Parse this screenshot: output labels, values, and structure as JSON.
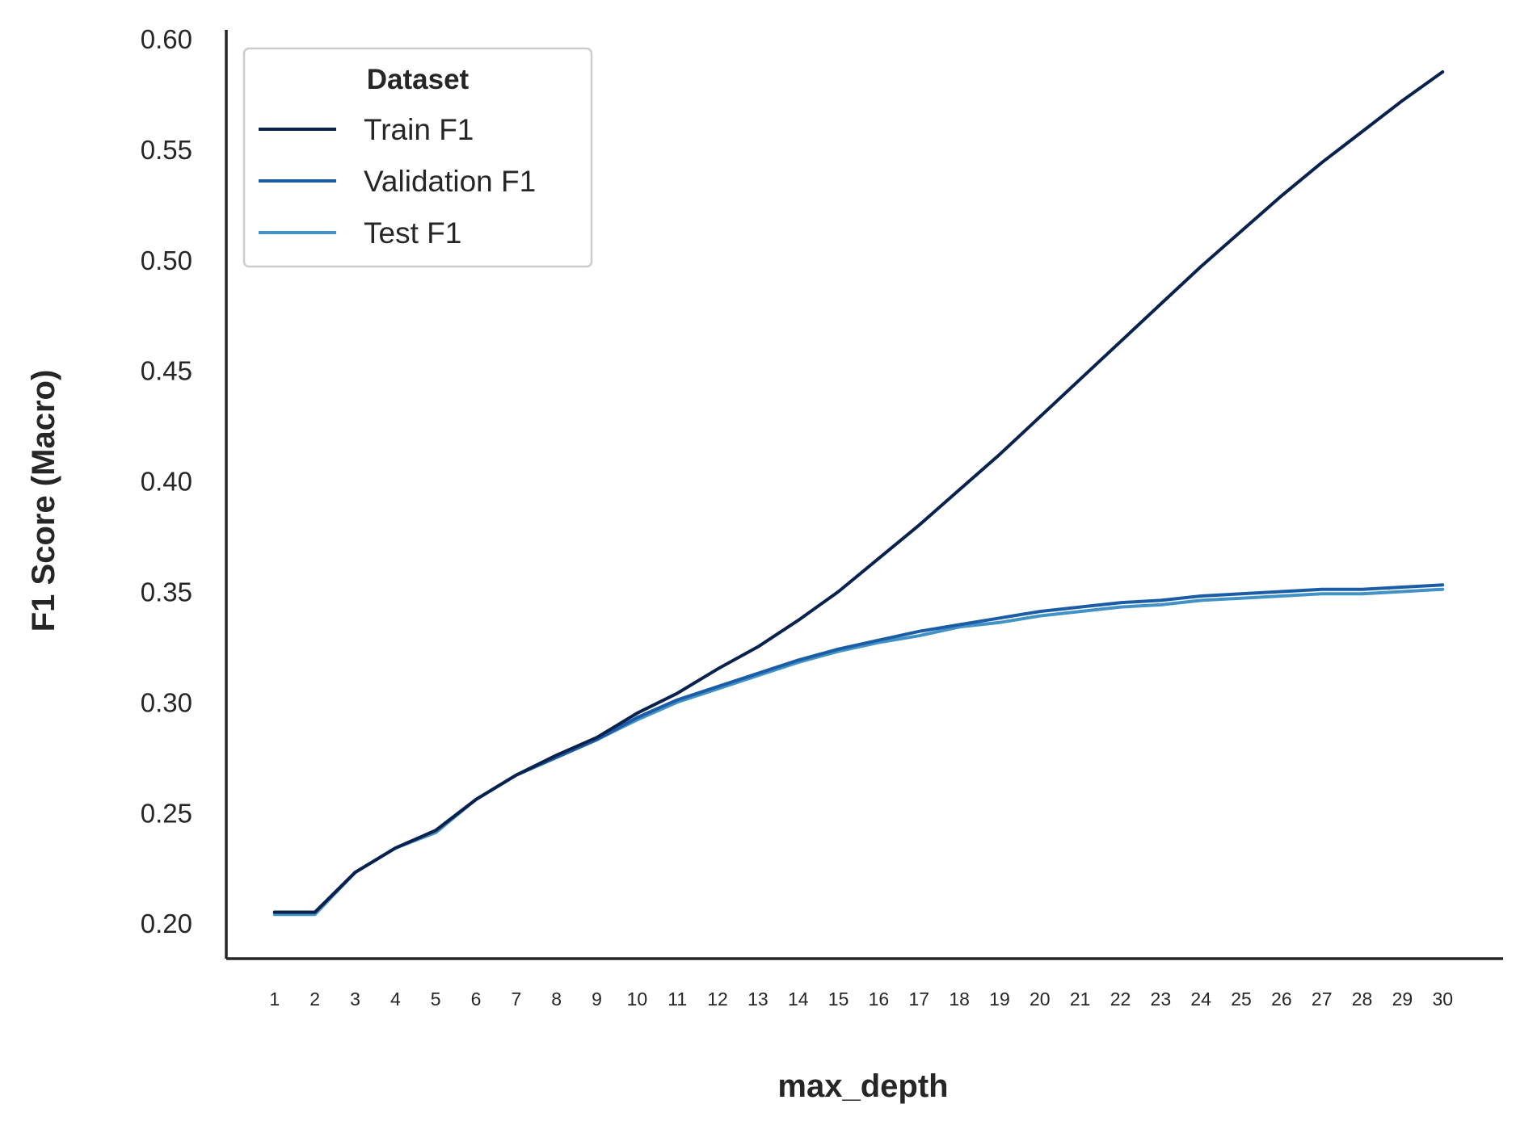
{
  "chart_data": {
    "type": "line",
    "title": "",
    "xlabel": "max_depth",
    "ylabel": "F1 Score (Macro)",
    "x": [
      1,
      2,
      3,
      4,
      5,
      6,
      7,
      8,
      9,
      10,
      11,
      12,
      13,
      14,
      15,
      16,
      17,
      18,
      19,
      20,
      21,
      22,
      23,
      24,
      25,
      26,
      27,
      28,
      29,
      30
    ],
    "x_tick_labels": [
      "1",
      "2",
      "3",
      "4",
      "5",
      "6",
      "7",
      "8",
      "9",
      "10",
      "11",
      "12",
      "13",
      "14",
      "15",
      "16",
      "17",
      "18",
      "19",
      "20",
      "21",
      "22",
      "23",
      "24",
      "25",
      "26",
      "27",
      "28",
      "29",
      "30"
    ],
    "y_ticks": [
      0.2,
      0.25,
      0.3,
      0.35,
      0.4,
      0.45,
      0.5,
      0.55,
      0.6
    ],
    "y_tick_labels": [
      "0.20",
      "0.25",
      "0.30",
      "0.35",
      "0.40",
      "0.45",
      "0.50",
      "0.55",
      "0.60"
    ],
    "ylim": [
      0.184,
      0.604
    ],
    "xlim": [
      -0.2,
      31.5
    ],
    "grid": false,
    "legend": {
      "title": "Dataset",
      "placement": "top-left"
    },
    "series": [
      {
        "name": "Train F1",
        "color": "#08214d",
        "values": [
          0.205,
          0.205,
          0.223,
          0.234,
          0.242,
          0.256,
          0.267,
          0.276,
          0.284,
          0.295,
          0.304,
          0.315,
          0.325,
          0.337,
          0.35,
          0.365,
          0.38,
          0.396,
          0.412,
          0.429,
          0.446,
          0.463,
          0.48,
          0.497,
          0.513,
          0.529,
          0.544,
          0.558,
          0.572,
          0.585
        ]
      },
      {
        "name": "Validation F1",
        "color": "#1a5da6",
        "values": [
          0.205,
          0.205,
          0.223,
          0.234,
          0.242,
          0.256,
          0.267,
          0.275,
          0.283,
          0.293,
          0.301,
          0.307,
          0.313,
          0.319,
          0.324,
          0.328,
          0.332,
          0.335,
          0.338,
          0.341,
          0.343,
          0.345,
          0.346,
          0.348,
          0.349,
          0.35,
          0.351,
          0.351,
          0.352,
          0.353
        ]
      },
      {
        "name": "Test F1",
        "color": "#4292c6",
        "values": [
          0.204,
          0.204,
          0.223,
          0.234,
          0.241,
          0.256,
          0.267,
          0.275,
          0.283,
          0.292,
          0.3,
          0.306,
          0.312,
          0.318,
          0.323,
          0.327,
          0.33,
          0.334,
          0.336,
          0.339,
          0.341,
          0.343,
          0.344,
          0.346,
          0.347,
          0.348,
          0.349,
          0.349,
          0.35,
          0.351
        ]
      }
    ]
  }
}
